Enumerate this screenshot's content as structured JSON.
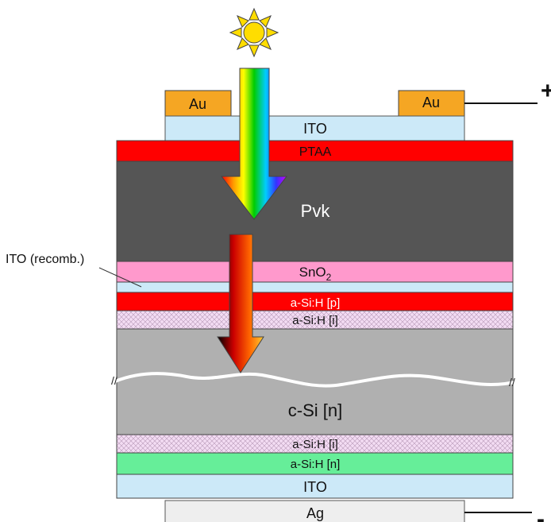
{
  "layers": {
    "au_left": "Au",
    "au_right": "Au",
    "ito_top": "ITO",
    "ptaa": "PTAA",
    "pvk": "Pvk",
    "sno2_base": "SnO",
    "sno2_sub": "2",
    "asih_p_top": "a-Si:H [p]",
    "asih_i_top": "a-Si:H [i]",
    "csi": "c-Si [n]",
    "asih_i_bottom": "a-Si:H [i]",
    "asih_n_bottom": "a-Si:H [n]",
    "ito_bottom": "ITO",
    "ag": "Ag"
  },
  "annotations": {
    "ito_recomb": "ITO (recomb.)",
    "plus_terminal": "+",
    "minus_terminal": "-"
  },
  "colors": {
    "au": "#f5a623",
    "ito": "#cce9f8",
    "ptaa": "#ff0000",
    "pvk": "#555555",
    "sno2": "#ff99cc",
    "asih_p": "#ff0000",
    "asih_i": "#f0d8f0",
    "csi": "#b0b0b0",
    "asih_n": "#66ee99",
    "ag": "#eeeeee",
    "sun": "#ffdd00"
  },
  "icons": {
    "sun": "sun-icon",
    "light_arrow_spectrum": "rainbow-arrow-icon",
    "light_arrow_infrared": "red-arrow-icon",
    "break_marks": "axis-break-icon"
  }
}
